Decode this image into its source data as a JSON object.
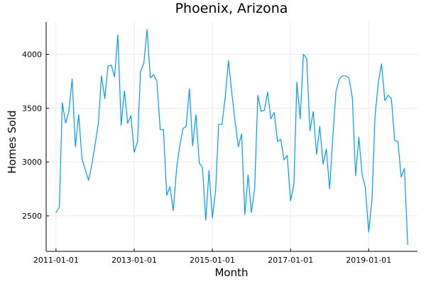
{
  "chart_data": {
    "type": "line",
    "title": "Phoenix, Arizona",
    "xlabel": "Month",
    "ylabel": "Homes Sold",
    "xlim": [
      "2010-10-01",
      "2020-04-01"
    ],
    "ylim": [
      2170,
      4300
    ],
    "grid": true,
    "legend": "none",
    "x_ticks": [
      "2011-01-01",
      "2013-01-01",
      "2015-01-01",
      "2017-01-01",
      "2019-01-01"
    ],
    "y_ticks": [
      2500,
      3000,
      3500,
      4000
    ],
    "series": [
      {
        "color": "#009AFA",
        "points": [
          [
            "2011-01-01",
            2530
          ],
          [
            "2011-02-01",
            2580
          ],
          [
            "2011-03-01",
            3550
          ],
          [
            "2011-04-01",
            3360
          ],
          [
            "2011-05-01",
            3470
          ],
          [
            "2011-06-01",
            3770
          ],
          [
            "2011-07-01",
            3140
          ],
          [
            "2011-08-01",
            3440
          ],
          [
            "2011-09-01",
            3030
          ],
          [
            "2011-10-01",
            2930
          ],
          [
            "2011-11-01",
            2830
          ],
          [
            "2011-12-01",
            2970
          ],
          [
            "2012-01-01",
            3160
          ],
          [
            "2012-02-01",
            3360
          ],
          [
            "2012-03-01",
            3800
          ],
          [
            "2012-04-01",
            3590
          ],
          [
            "2012-05-01",
            3890
          ],
          [
            "2012-06-01",
            3900
          ],
          [
            "2012-07-01",
            3790
          ],
          [
            "2012-08-01",
            4180
          ],
          [
            "2012-09-01",
            3340
          ],
          [
            "2012-10-01",
            3660
          ],
          [
            "2012-11-01",
            3360
          ],
          [
            "2012-12-01",
            3430
          ],
          [
            "2013-01-01",
            3090
          ],
          [
            "2013-02-01",
            3190
          ],
          [
            "2013-03-01",
            3840
          ],
          [
            "2013-04-01",
            3920
          ],
          [
            "2013-05-01",
            4230
          ],
          [
            "2013-06-01",
            3780
          ],
          [
            "2013-07-01",
            3810
          ],
          [
            "2013-08-01",
            3750
          ],
          [
            "2013-09-01",
            3300
          ],
          [
            "2013-10-01",
            3300
          ],
          [
            "2013-11-01",
            2690
          ],
          [
            "2013-12-01",
            2770
          ],
          [
            "2014-01-01",
            2550
          ],
          [
            "2014-02-01",
            2940
          ],
          [
            "2014-03-01",
            3140
          ],
          [
            "2014-04-01",
            3310
          ],
          [
            "2014-05-01",
            3330
          ],
          [
            "2014-06-01",
            3680
          ],
          [
            "2014-07-01",
            3150
          ],
          [
            "2014-08-01",
            3440
          ],
          [
            "2014-09-01",
            2990
          ],
          [
            "2014-10-01",
            2950
          ],
          [
            "2014-11-01",
            2460
          ],
          [
            "2014-12-01",
            2920
          ],
          [
            "2015-01-01",
            2480
          ],
          [
            "2015-02-01",
            2740
          ],
          [
            "2015-03-01",
            3350
          ],
          [
            "2015-04-01",
            3350
          ],
          [
            "2015-05-01",
            3600
          ],
          [
            "2015-06-01",
            3940
          ],
          [
            "2015-07-01",
            3650
          ],
          [
            "2015-08-01",
            3380
          ],
          [
            "2015-09-01",
            3140
          ],
          [
            "2015-10-01",
            3260
          ],
          [
            "2015-11-01",
            2510
          ],
          [
            "2015-12-01",
            2880
          ],
          [
            "2016-01-01",
            2530
          ],
          [
            "2016-02-01",
            2760
          ],
          [
            "2016-03-01",
            3620
          ],
          [
            "2016-04-01",
            3470
          ],
          [
            "2016-05-01",
            3480
          ],
          [
            "2016-06-01",
            3650
          ],
          [
            "2016-07-01",
            3400
          ],
          [
            "2016-08-01",
            3460
          ],
          [
            "2016-09-01",
            3190
          ],
          [
            "2016-10-01",
            3210
          ],
          [
            "2016-11-01",
            3020
          ],
          [
            "2016-12-01",
            3060
          ],
          [
            "2017-01-01",
            2640
          ],
          [
            "2017-02-01",
            2790
          ],
          [
            "2017-03-01",
            3740
          ],
          [
            "2017-04-01",
            3400
          ],
          [
            "2017-05-01",
            4000
          ],
          [
            "2017-06-01",
            3960
          ],
          [
            "2017-07-01",
            3290
          ],
          [
            "2017-08-01",
            3470
          ],
          [
            "2017-09-01",
            3070
          ],
          [
            "2017-10-01",
            3330
          ],
          [
            "2017-11-01",
            2980
          ],
          [
            "2017-12-01",
            3120
          ],
          [
            "2018-01-01",
            2750
          ],
          [
            "2018-02-01",
            3250
          ],
          [
            "2018-03-01",
            3650
          ],
          [
            "2018-04-01",
            3770
          ],
          [
            "2018-05-01",
            3800
          ],
          [
            "2018-06-01",
            3800
          ],
          [
            "2018-07-01",
            3780
          ],
          [
            "2018-08-01",
            3600
          ],
          [
            "2018-09-01",
            2870
          ],
          [
            "2018-10-01",
            3230
          ],
          [
            "2018-11-01",
            2880
          ],
          [
            "2018-12-01",
            2760
          ],
          [
            "2019-01-01",
            2350
          ],
          [
            "2019-02-01",
            2650
          ],
          [
            "2019-03-01",
            3420
          ],
          [
            "2019-04-01",
            3740
          ],
          [
            "2019-05-01",
            3910
          ],
          [
            "2019-06-01",
            3570
          ],
          [
            "2019-07-01",
            3620
          ],
          [
            "2019-08-01",
            3590
          ],
          [
            "2019-09-01",
            3200
          ],
          [
            "2019-10-01",
            3190
          ],
          [
            "2019-11-01",
            2860
          ],
          [
            "2019-12-01",
            2940
          ],
          [
            "2020-01-01",
            2230
          ]
        ]
      }
    ]
  }
}
